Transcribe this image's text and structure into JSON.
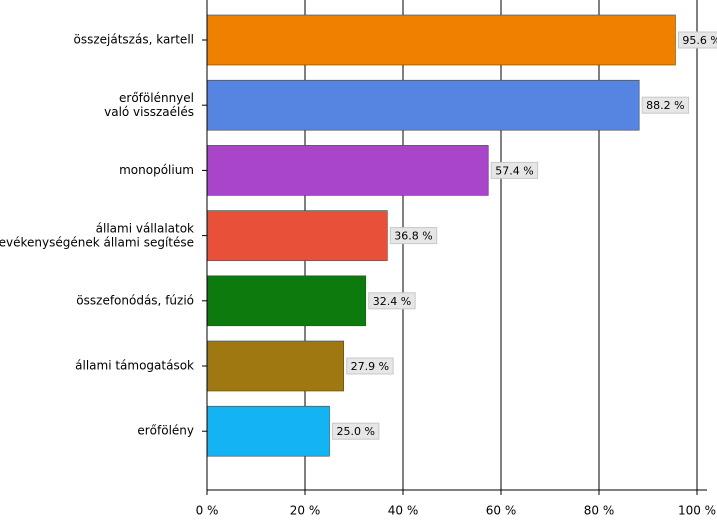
{
  "chart_data": {
    "type": "bar",
    "orientation": "horizontal",
    "categories": [
      "összejátszás, kartell",
      "erőfölénnyel\nvaló visszaélés",
      "monopólium",
      "állami vállalatok\ntevékenységének állami segítése",
      "összefonódás, fúzió",
      "állami támogatások",
      "erőfölény"
    ],
    "values": [
      95.6,
      88.2,
      57.4,
      36.8,
      32.4,
      27.9,
      25.0
    ],
    "value_labels": [
      "95.6 %",
      "88.2 %",
      "57.4 %",
      "36.8 %",
      "32.4 %",
      "27.9 %",
      "25.0 %"
    ],
    "colors": [
      "#f08000",
      "#5585e0",
      "#a845c8",
      "#e8503a",
      "#0d7a0d",
      "#a07812",
      "#14b4f4"
    ],
    "xlim": [
      0,
      100
    ],
    "xticks": [
      {
        "value": 0,
        "label": "0 %"
      },
      {
        "value": 20,
        "label": "20 %"
      },
      {
        "value": 40,
        "label": "40 %"
      },
      {
        "value": 60,
        "label": "60 %"
      },
      {
        "value": 80,
        "label": "80 %"
      },
      {
        "value": 100,
        "label": "100 %"
      }
    ],
    "grid": true
  }
}
